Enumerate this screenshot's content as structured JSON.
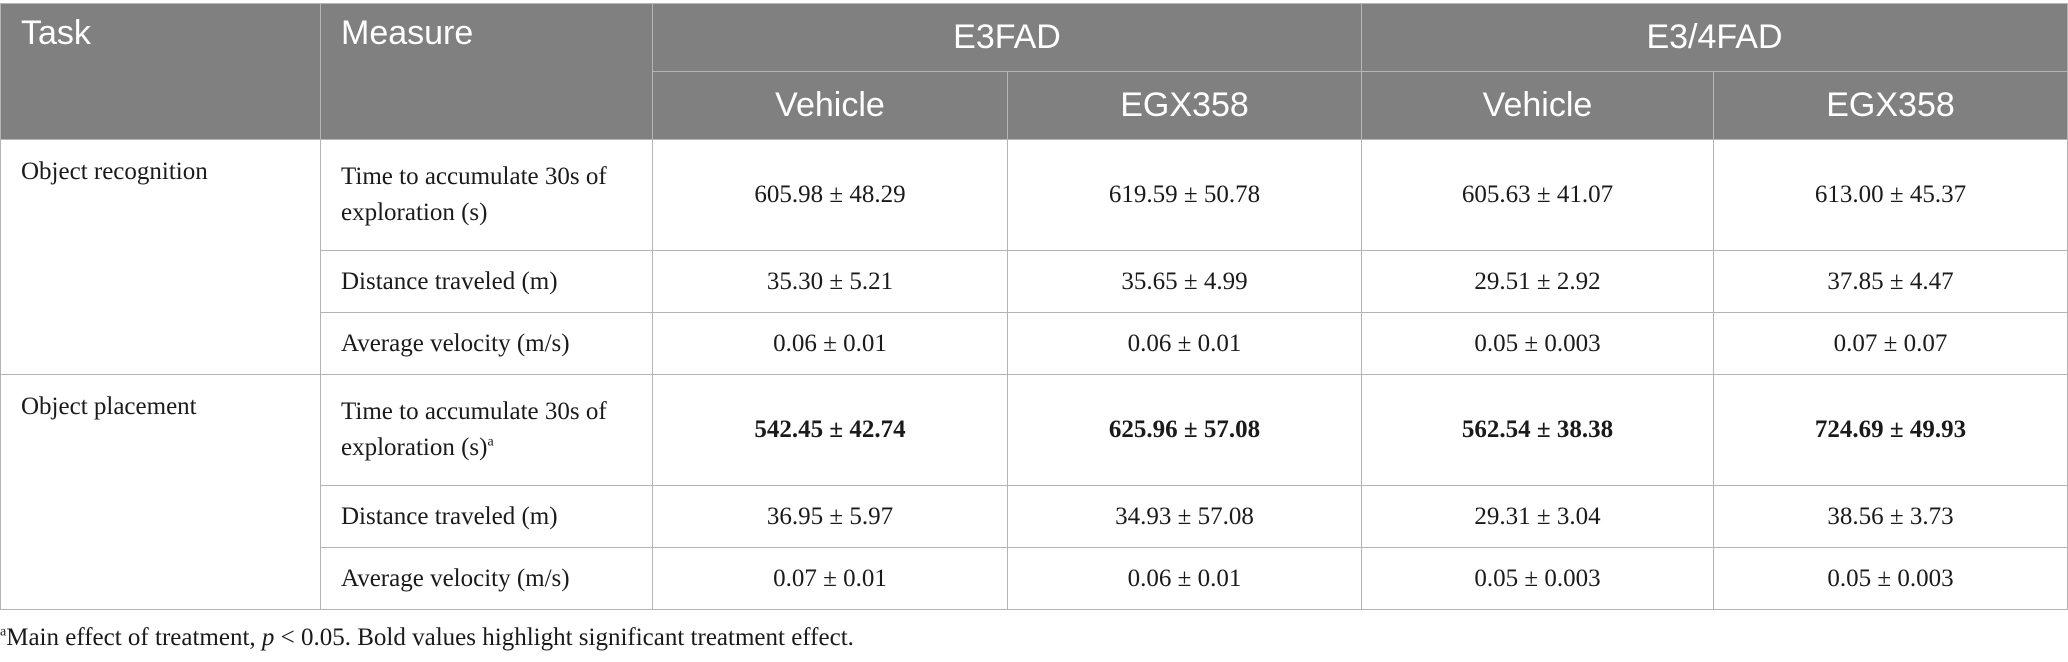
{
  "header": {
    "task": "Task",
    "measure": "Measure",
    "groups": [
      "E3FAD",
      "E3/4FAD"
    ],
    "subgroups": [
      "Vehicle",
      "EGX358",
      "Vehicle",
      "EGX358"
    ]
  },
  "rows": [
    {
      "task": "Object recognition",
      "measure": "Time to accumulate 30s of exploration (s)",
      "sup": "",
      "values": [
        "605.98 ± 48.29",
        "619.59 ± 50.78",
        "605.63 ± 41.07",
        "613.00 ± 45.37"
      ],
      "bold": false
    },
    {
      "task": "",
      "measure": "Distance traveled (m)",
      "sup": "",
      "values": [
        "35.30 ± 5.21",
        "35.65 ± 4.99",
        "29.51 ± 2.92",
        "37.85 ± 4.47"
      ],
      "bold": false
    },
    {
      "task": "",
      "measure": "Average velocity (m/s)",
      "sup": "",
      "values": [
        "0.06 ± 0.01",
        "0.06 ± 0.01",
        "0.05 ± 0.003",
        "0.07 ± 0.07"
      ],
      "bold": false
    },
    {
      "task": "Object placement",
      "measure": "Time to accumulate 30s of exploration (s)",
      "sup": "a",
      "values": [
        "542.45 ± 42.74",
        "625.96 ± 57.08",
        "562.54 ± 38.38",
        "724.69 ± 49.93"
      ],
      "bold": true
    },
    {
      "task": "",
      "measure": "Distance traveled (m)",
      "sup": "",
      "values": [
        "36.95 ± 5.97",
        "34.93 ± 57.08",
        "29.31 ± 3.04",
        "38.56 ± 3.73"
      ],
      "bold": false
    },
    {
      "task": "",
      "measure": "Average velocity (m/s)",
      "sup": "",
      "values": [
        "0.07 ± 0.01",
        "0.06 ± 0.01",
        "0.05 ± 0.003",
        "0.05 ± 0.003"
      ],
      "bold": false
    }
  ],
  "footnote": {
    "marker": "a",
    "text_before": "Main effect of treatment, ",
    "p": "p",
    "text_after": " < 0.05. Bold values highlight significant treatment effect."
  }
}
